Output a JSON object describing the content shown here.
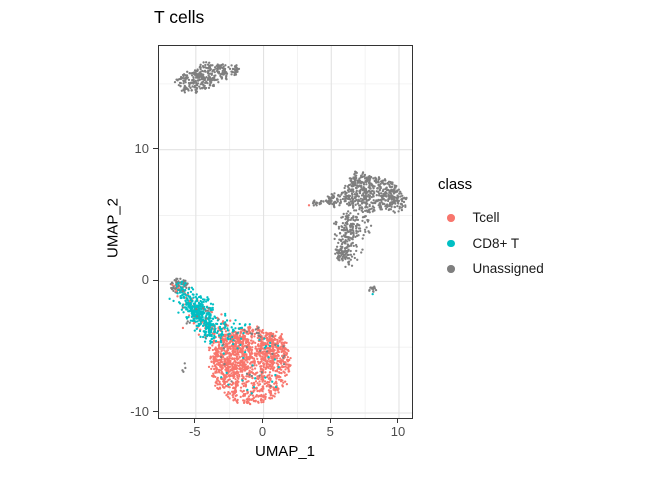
{
  "title": "T cells",
  "axes": {
    "x_label": "UMAP_1",
    "y_label": "UMAP_2"
  },
  "legend": {
    "title": "class",
    "items": [
      {
        "label": "Tcell"
      },
      {
        "label": "CD8+ T"
      },
      {
        "label": "Unassigned"
      }
    ]
  },
  "colors": {
    "panel_border": "#333333",
    "grid_major": "#E2E2E2",
    "grid_minor": "#F0F0F0",
    "tick": "#333333",
    "tick_label": "#4D4D4D",
    "title": "#000000"
  },
  "chart_data": {
    "type": "scatter",
    "title": "T cells",
    "xlabel": "UMAP_1",
    "ylabel": "UMAP_2",
    "xlim": [
      -7.72,
      10.96
    ],
    "ylim": [
      -10.38,
      17.88
    ],
    "x_major_ticks": [
      -5,
      0,
      5,
      10
    ],
    "x_minor_ticks": [
      -2.5,
      2.5,
      7.5
    ],
    "y_major_ticks": [
      -10,
      0,
      10
    ],
    "y_minor_ticks": [
      -5,
      5,
      15
    ],
    "grid": true,
    "legend_position": "right",
    "legend_title": "class",
    "point_radius_px": 1.15,
    "classes": [
      {
        "name": "Tcell",
        "color": "#F8766D"
      },
      {
        "name": "CD8+ T",
        "color": "#00BFC4"
      },
      {
        "name": "Unassigned",
        "color": "#7F7F7F"
      }
    ],
    "cluster_note": "Point clouds summarized as generative clusters (UMAP coords); type disk = uniform ellipse [cx,cy,rx,ry], line = segment a->b with gaussian sigma; z = draw order",
    "clusters": [
      {
        "class": "Unassigned",
        "z": 0,
        "type": "disk",
        "c": [
          -5.3,
          15.1
        ],
        "r": [
          1.15,
          0.8
        ],
        "n": 120
      },
      {
        "class": "Unassigned",
        "z": 0,
        "type": "disk",
        "c": [
          -4.0,
          15.6
        ],
        "r": [
          1.25,
          0.9
        ],
        "n": 140
      },
      {
        "class": "Unassigned",
        "z": 0,
        "type": "disk",
        "c": [
          -2.7,
          16.1
        ],
        "r": [
          0.95,
          0.5
        ],
        "n": 55
      },
      {
        "class": "Unassigned",
        "z": 0,
        "type": "disk",
        "c": [
          7.9,
          6.6
        ],
        "r": [
          2.1,
          1.35
        ],
        "n": 390
      },
      {
        "class": "Unassigned",
        "z": 0,
        "type": "disk",
        "c": [
          9.6,
          6.1
        ],
        "r": [
          1.0,
          0.95
        ],
        "n": 90
      },
      {
        "class": "Unassigned",
        "z": 0,
        "type": "disk",
        "c": [
          7.0,
          7.8
        ],
        "r": [
          0.85,
          0.55
        ],
        "n": 55
      },
      {
        "class": "Unassigned",
        "z": 0,
        "type": "disk",
        "c": [
          5.35,
          6.2
        ],
        "r": [
          0.5,
          0.55
        ],
        "n": 40
      },
      {
        "class": "Unassigned",
        "z": 0,
        "type": "line",
        "a": [
          6.25,
          5.0
        ],
        "b": [
          5.95,
          1.7
        ],
        "s": 0.45,
        "n": 170
      },
      {
        "class": "Unassigned",
        "z": 0,
        "type": "disk",
        "c": [
          5.95,
          1.9
        ],
        "r": [
          0.6,
          0.6
        ],
        "n": 40
      },
      {
        "class": "Unassigned",
        "z": 0,
        "type": "disk",
        "c": [
          7.1,
          4.2
        ],
        "r": [
          0.8,
          1.0
        ],
        "n": 45
      },
      {
        "class": "Unassigned",
        "z": 0,
        "type": "line",
        "a": [
          3.6,
          5.85
        ],
        "b": [
          5.05,
          6.1
        ],
        "s": 0.12,
        "n": 26
      },
      {
        "class": "Unassigned",
        "z": 0,
        "type": "disk",
        "c": [
          8.1,
          -0.6
        ],
        "r": [
          0.33,
          0.3
        ],
        "n": 13
      },
      {
        "class": "Unassigned",
        "z": 0,
        "type": "disk",
        "c": [
          -6.25,
          -0.35
        ],
        "r": [
          0.75,
          0.5
        ],
        "n": 60
      },
      {
        "class": "Unassigned",
        "z": 0,
        "type": "disk",
        "c": [
          -5.85,
          -6.4
        ],
        "r": [
          0.15,
          0.5
        ],
        "n": 4
      },
      {
        "class": "Unassigned",
        "z": 0,
        "type": "disk",
        "c": [
          -5.6,
          -3.0
        ],
        "r": [
          0.2,
          0.15
        ],
        "n": 3
      },
      {
        "class": "Tcell",
        "z": 1,
        "type": "disk",
        "c": [
          -1.0,
          -6.4
        ],
        "r": [
          2.95,
          2.95
        ],
        "n": 980
      },
      {
        "class": "Tcell",
        "z": 1,
        "type": "disk",
        "c": [
          -2.4,
          -5.5
        ],
        "r": [
          1.6,
          1.8
        ],
        "n": 270
      },
      {
        "class": "Tcell",
        "z": 1,
        "type": "disk",
        "c": [
          0.7,
          -5.1
        ],
        "r": [
          1.2,
          1.15
        ],
        "n": 170
      },
      {
        "class": "Tcell",
        "z": 1,
        "type": "line",
        "a": [
          -4.7,
          -2.7
        ],
        "b": [
          -2.7,
          -4.4
        ],
        "s": 0.55,
        "n": 90
      },
      {
        "class": "Tcell",
        "z": 1,
        "type": "line",
        "a": [
          -5.9,
          -0.7
        ],
        "b": [
          -4.7,
          -2.5
        ],
        "s": 0.35,
        "n": 25
      },
      {
        "class": "Tcell",
        "z": 1,
        "type": "disk",
        "c": [
          -6.35,
          -0.45
        ],
        "r": [
          0.3,
          0.25
        ],
        "n": 5
      },
      {
        "class": "Tcell",
        "z": 3,
        "type": "disk",
        "c": [
          3.35,
          5.75
        ],
        "r": [
          0.03,
          0.03
        ],
        "n": 1
      },
      {
        "class": "CD8+ T",
        "z": 2,
        "type": "line",
        "a": [
          -5.95,
          -0.9
        ],
        "b": [
          -3.6,
          -4.3
        ],
        "s": 0.42,
        "n": 300
      },
      {
        "class": "CD8+ T",
        "z": 2,
        "type": "disk",
        "c": [
          -4.6,
          -2.0
        ],
        "r": [
          0.85,
          0.9
        ],
        "n": 90
      },
      {
        "class": "CD8+ T",
        "z": 2,
        "type": "line",
        "a": [
          -3.4,
          -3.1
        ],
        "b": [
          -2.1,
          -3.8
        ],
        "s": 0.45,
        "n": 45
      },
      {
        "class": "CD8+ T",
        "z": 2,
        "type": "disk",
        "c": [
          -6.1,
          -0.35
        ],
        "r": [
          0.5,
          0.35
        ],
        "n": 14
      },
      {
        "class": "CD8+ T",
        "z": 2,
        "type": "disk",
        "c": [
          -0.8,
          -6.2
        ],
        "r": [
          2.6,
          2.4
        ],
        "n": 30
      },
      {
        "class": "CD8+ T",
        "z": 2,
        "type": "disk",
        "c": [
          8.05,
          -0.95
        ],
        "r": [
          0.05,
          0.05
        ],
        "n": 1
      },
      {
        "class": "Unassigned",
        "z": 3,
        "type": "disk",
        "c": [
          -1.0,
          -6.0
        ],
        "r": [
          2.9,
          2.6
        ],
        "n": 26
      },
      {
        "class": "Unassigned",
        "z": 3,
        "type": "line",
        "a": [
          -5.8,
          -1.2
        ],
        "b": [
          -3.7,
          -4.2
        ],
        "s": 0.5,
        "n": 12
      },
      {
        "class": "Unassigned",
        "z": 3,
        "type": "disk",
        "c": [
          -0.9,
          -3.9
        ],
        "r": [
          1.1,
          0.4
        ],
        "n": 8
      }
    ]
  }
}
